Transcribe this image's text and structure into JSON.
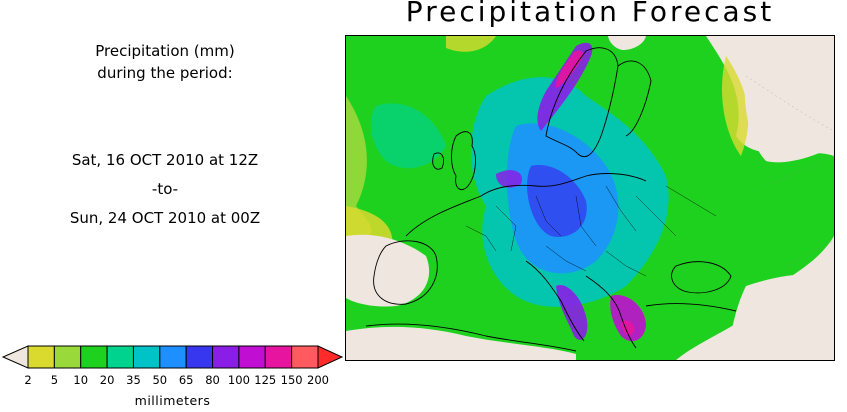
{
  "title": "Precipitation Forecast",
  "info": {
    "line1": "Precipitation (mm)",
    "line2": "during the period:",
    "start": "Sat, 16 OCT 2010 at 12Z",
    "separator": "-to-",
    "end": "Sun, 24 OCT 2010 at 00Z"
  },
  "legend": {
    "units": "millimeters",
    "ticks": [
      "2",
      "5",
      "10",
      "20",
      "35",
      "50",
      "65",
      "80",
      "100",
      "125",
      "150",
      "200"
    ],
    "bins": [
      {
        "color": "#d9d92e"
      },
      {
        "color": "#9ad93a"
      },
      {
        "color": "#1fd11f"
      },
      {
        "color": "#00d38d"
      },
      {
        "color": "#00c3c8"
      },
      {
        "color": "#1e8fff"
      },
      {
        "color": "#3737f0"
      },
      {
        "color": "#8a1ee6"
      },
      {
        "color": "#c00ed2"
      },
      {
        "color": "#e6149f"
      },
      {
        "color": "#ff5a5f"
      }
    ],
    "under_color": "#efe6df",
    "over_color": "#ff2a2a"
  },
  "map": {
    "land_dry_color": "#efe6df",
    "sea_color": "#1fd11f",
    "border_color": "#000000"
  }
}
